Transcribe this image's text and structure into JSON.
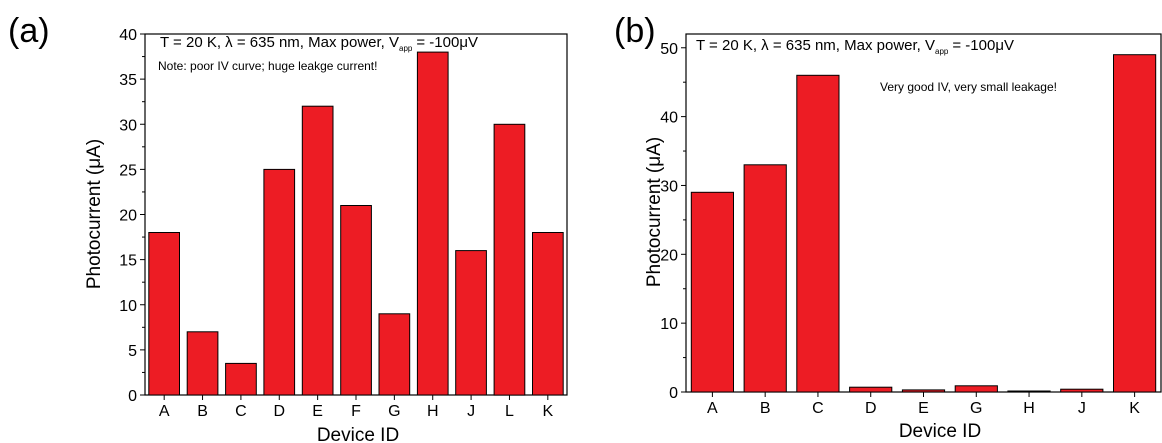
{
  "chart_data": [
    {
      "type": "bar",
      "panel_label": "(a)",
      "annotation_main": "T = 20 K, λ = 635 nm, Max power, V",
      "annotation_sub": "app",
      "annotation_tail": "= -100μV",
      "note": "Note: poor IV curve; huge leakge current!",
      "xlabel": "Device ID",
      "ylabel": "Photocurrent (μA)",
      "ylim": [
        0,
        40
      ],
      "yticks": [
        0,
        5,
        10,
        15,
        20,
        25,
        30,
        35,
        40
      ],
      "categories": [
        "A",
        "B",
        "C",
        "D",
        "E",
        "F",
        "G",
        "H",
        "J",
        "L",
        "K"
      ],
      "values": [
        18,
        7,
        3.5,
        25,
        32,
        21,
        9,
        38,
        16,
        30,
        18
      ],
      "bar_color": "#ed1c24"
    },
    {
      "type": "bar",
      "panel_label": "(b)",
      "annotation_main": "T = 20 K, λ = 635 nm, Max power, V",
      "annotation_sub": "app",
      "annotation_tail": "= -100μV",
      "note": "Very good IV, very small leakage!",
      "xlabel": "Device ID",
      "ylabel": "Photocurrent (μA)",
      "ylim": [
        0,
        52
      ],
      "yticks": [
        0,
        10,
        20,
        30,
        40,
        50
      ],
      "categories": [
        "A",
        "B",
        "C",
        "D",
        "E",
        "G",
        "H",
        "J",
        "K"
      ],
      "values": [
        29,
        33,
        46,
        0.7,
        0.3,
        0.9,
        0.15,
        0.4,
        49
      ],
      "bar_color": "#ed1c24"
    }
  ]
}
